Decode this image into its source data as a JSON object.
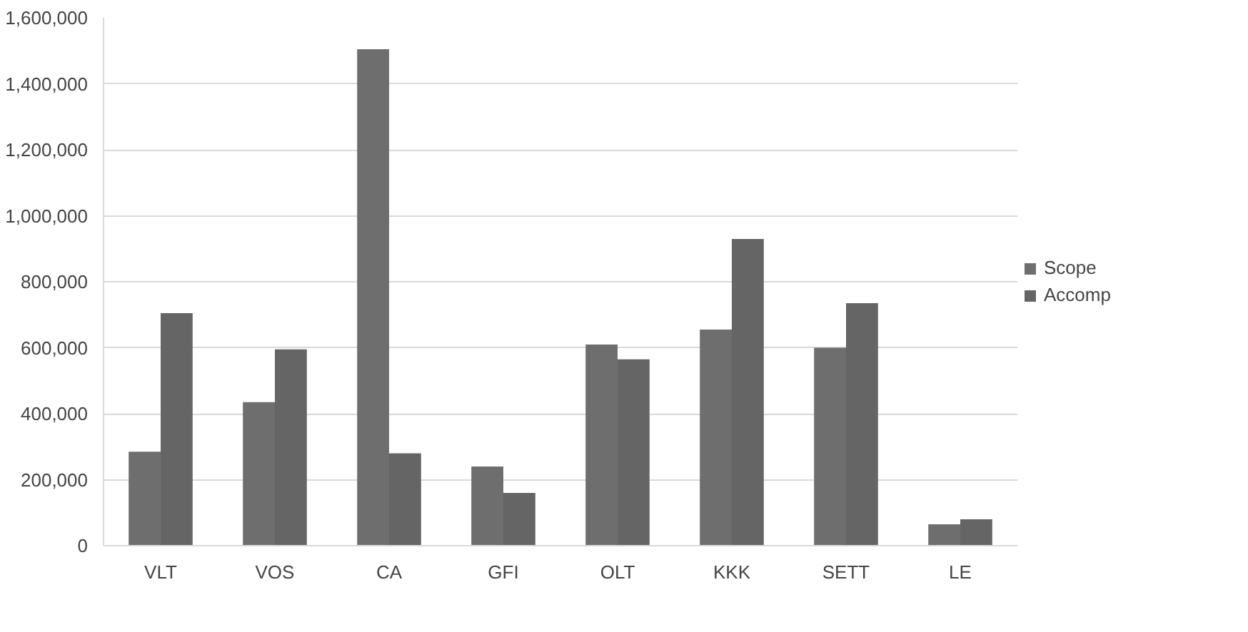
{
  "chart_data": {
    "type": "bar",
    "categories": [
      "VLT",
      "VOS",
      "CA",
      "GFI",
      "OLT",
      "KKK",
      "SETT",
      "LE"
    ],
    "series": [
      {
        "name": "Scope",
        "color": "#6e6e6e",
        "values": [
          285000,
          435000,
          1505000,
          240000,
          610000,
          655000,
          600000,
          65000
        ]
      },
      {
        "name": "Accomp",
        "color": "#656565",
        "values": [
          705000,
          595000,
          280000,
          160000,
          565000,
          930000,
          735000,
          80000
        ]
      }
    ],
    "ylim": [
      0,
      1600000
    ],
    "yticks": [
      {
        "value": 0,
        "label": "0"
      },
      {
        "value": 200000,
        "label": "200,000"
      },
      {
        "value": 400000,
        "label": "400,000"
      },
      {
        "value": 600000,
        "label": "600,000"
      },
      {
        "value": 800000,
        "label": "800,000"
      },
      {
        "value": 1000000,
        "label": "1,000,000"
      },
      {
        "value": 1200000,
        "label": "1,200,000"
      },
      {
        "value": 1400000,
        "label": "1,400,000"
      },
      {
        "value": 1600000,
        "label": "1,600,000"
      }
    ],
    "grid": "y",
    "legend": "right"
  }
}
